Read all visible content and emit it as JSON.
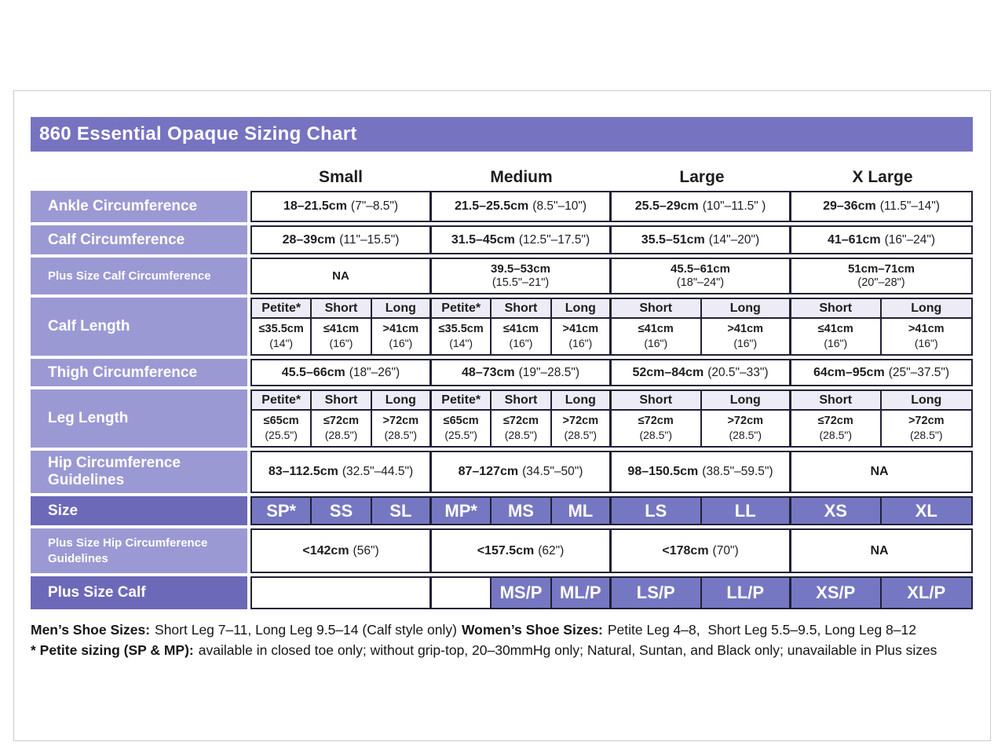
{
  "title": "860 Essential Opaque Sizing Chart",
  "columns": [
    "Small",
    "Medium",
    "Large",
    "X Large"
  ],
  "rows": {
    "ankle": {
      "label": "Ankle Circumference",
      "values": [
        {
          "main": "18–21.5cm",
          "paren": "(7\"–8.5\")"
        },
        {
          "main": "21.5–25.5cm",
          "paren": "(8.5\"–10\")"
        },
        {
          "main": "25.5–29cm",
          "paren": "(10\"–11.5\" )"
        },
        {
          "main": "29–36cm",
          "paren": "(11.5\"–14\")"
        }
      ]
    },
    "calf": {
      "label": "Calf Circumference",
      "values": [
        {
          "main": "28–39cm",
          "paren": "(11\"–15.5\")"
        },
        {
          "main": "31.5–45cm",
          "paren": "(12.5\"–17.5\")"
        },
        {
          "main": "35.5–51cm",
          "paren": "(14\"–20\")"
        },
        {
          "main": "41–61cm",
          "paren": "(16\"–24\")"
        }
      ]
    },
    "plus_calf_circ": {
      "label": "Plus Size Calf Circumference",
      "values": [
        {
          "main": "NA",
          "paren": ""
        },
        {
          "main": "39.5–53cm",
          "paren": "(15.5\"–21\")"
        },
        {
          "main": "45.5–61cm",
          "paren": "(18\"–24\")"
        },
        {
          "main": "51cm–71cm",
          "paren": "(20\"–28\")"
        }
      ]
    },
    "calf_length": {
      "label": "Calf Length",
      "subheaders": [
        "Petite*",
        "Short",
        "Long",
        "Petite*",
        "Short",
        "Long",
        "Short",
        "Long",
        "Short",
        "Long"
      ],
      "values": [
        {
          "main": "≤35.5cm",
          "paren": "(14\")"
        },
        {
          "main": "≤41cm",
          "paren": "(16\")"
        },
        {
          "main": ">41cm",
          "paren": "(16\")"
        },
        {
          "main": "≤35.5cm",
          "paren": "(14\")"
        },
        {
          "main": "≤41cm",
          "paren": "(16\")"
        },
        {
          "main": ">41cm",
          "paren": "(16\")"
        },
        {
          "main": "≤41cm",
          "paren": "(16\")"
        },
        {
          "main": ">41cm",
          "paren": "(16\")"
        },
        {
          "main": "≤41cm",
          "paren": "(16\")"
        },
        {
          "main": ">41cm",
          "paren": "(16\")"
        }
      ]
    },
    "thigh": {
      "label": "Thigh Circumference",
      "values": [
        {
          "main": "45.5–66cm",
          "paren": "(18\"–26\")"
        },
        {
          "main": "48–73cm",
          "paren": "(19\"–28.5\")"
        },
        {
          "main": "52cm–84cm",
          "paren": "(20.5\"–33\")"
        },
        {
          "main": "64cm–95cm",
          "paren": "(25\"–37.5\")"
        }
      ]
    },
    "leg_length": {
      "label": "Leg Length",
      "subheaders": [
        "Petite*",
        "Short",
        "Long",
        "Petite*",
        "Short",
        "Long",
        "Short",
        "Long",
        "Short",
        "Long"
      ],
      "values": [
        {
          "main": "≤65cm",
          "paren": "(25.5\")"
        },
        {
          "main": "≤72cm",
          "paren": "(28.5\")"
        },
        {
          "main": ">72cm",
          "paren": "(28.5\")"
        },
        {
          "main": "≤65cm",
          "paren": "(25.5\")"
        },
        {
          "main": "≤72cm",
          "paren": "(28.5\")"
        },
        {
          "main": ">72cm",
          "paren": "(28.5\")"
        },
        {
          "main": "≤72cm",
          "paren": "(28.5\")"
        },
        {
          "main": ">72cm",
          "paren": "(28.5\")"
        },
        {
          "main": "≤72cm",
          "paren": "(28.5\")"
        },
        {
          "main": ">72cm",
          "paren": "(28.5\")"
        }
      ]
    },
    "hip": {
      "label": "Hip Circumference Guidelines",
      "values": [
        {
          "main": "83–112.5cm",
          "paren": "(32.5\"–44.5\")"
        },
        {
          "main": "87–127cm",
          "paren": "(34.5\"–50\")"
        },
        {
          "main": "98–150.5cm",
          "paren": "(38.5\"–59.5\")"
        },
        {
          "main": "NA",
          "paren": ""
        }
      ]
    },
    "size": {
      "label": "Size",
      "values": [
        "SP*",
        "SS",
        "SL",
        "MP*",
        "MS",
        "ML",
        "LS",
        "LL",
        "XS",
        "XL"
      ]
    },
    "plus_hip": {
      "label": "Plus Size Hip Circumference Guidelines",
      "values": [
        {
          "main": "<142cm",
          "paren": "(56\")"
        },
        {
          "main": "<157.5cm",
          "paren": "(62\")"
        },
        {
          "main": "<178cm",
          "paren": "(70\")"
        },
        {
          "main": "NA",
          "paren": ""
        }
      ]
    },
    "plus_calf": {
      "label": "Plus Size Calf",
      "values": [
        "MS/P",
        "ML/P",
        "LS/P",
        "LL/P",
        "XS/P",
        "XL/P"
      ]
    }
  },
  "footnotes": {
    "l1_b1": "Men’s Shoe Sizes:",
    "l1_r1": "Short Leg 7–11, Long Leg 9.5–14 (Calf style only)",
    "l1_b2": "Women’s Shoe Sizes:",
    "l1_r2": "Petite Leg 4–8,  Short Leg 5.5–9.5, Long Leg 8–12",
    "l2_b1": "* Petite sizing (SP & MP):",
    "l2_r1": "available in closed toe only; without grip-top, 20–30mmHg only; Natural, Suntan, and Black only; unavailable in Plus sizes"
  },
  "colors": {
    "title_bar": "#7673c1",
    "label_light": "#9b99d3",
    "label_dark": "#6c69b9",
    "size_cell": "#7677c2",
    "subheader_bg": "#edecf6",
    "border": "#202038"
  }
}
